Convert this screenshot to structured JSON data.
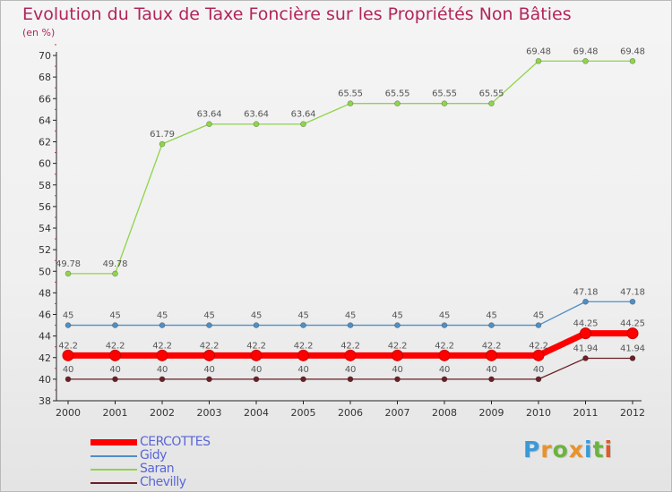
{
  "title": "Evolution du Taux de Taxe Foncière sur les Propriétés Non Bâties",
  "unit": "(en %)",
  "logo": {
    "text": "Proxiti",
    "letter_colors": [
      "#3a9ad9",
      "#e8922a",
      "#6cb33f",
      "#e8922a",
      "#3a9ad9",
      "#6cb33f",
      "#e05a2b"
    ]
  },
  "chart_data": {
    "type": "line",
    "title": "Evolution du Taux de Taxe Foncière sur les Propriétés Non Bâties",
    "ylabel": "(en %)",
    "xlabel": "",
    "x": [
      "2000",
      "2001",
      "2002",
      "2003",
      "2004",
      "2005",
      "2006",
      "2007",
      "2008",
      "2009",
      "2010",
      "2011",
      "2012"
    ],
    "ylim": [
      38,
      70
    ],
    "yticks": [
      "38",
      "40",
      "42",
      "44",
      "46",
      "48",
      "50",
      "52",
      "54",
      "56",
      "58",
      "60",
      "62",
      "64",
      "66",
      "68",
      "70"
    ],
    "grid": false,
    "legend_position": "bottom-left",
    "series": [
      {
        "name": "CERCOTTES",
        "color": "#ff0000",
        "values": [
          42.2,
          42.2,
          42.2,
          42.2,
          42.2,
          42.2,
          42.2,
          42.2,
          42.2,
          42.2,
          42.2,
          44.25,
          44.25
        ],
        "labels": [
          "42.2",
          "42.2",
          "42.2",
          "42.2",
          "42.2",
          "42.2",
          "42.2",
          "42.2",
          "42.2",
          "42.2",
          "42.2",
          "44.25",
          "44.25"
        ]
      },
      {
        "name": "Gidy",
        "color": "#4e8fc6",
        "values": [
          45,
          45,
          45,
          45,
          45,
          45,
          45,
          45,
          45,
          45,
          45,
          47.18,
          47.18
        ],
        "labels": [
          "45",
          "45",
          "45",
          "45",
          "45",
          "45",
          "45",
          "45",
          "45",
          "45",
          "45",
          "47.18",
          "47.18"
        ]
      },
      {
        "name": "Saran",
        "color": "#8fd44a",
        "values": [
          49.78,
          49.78,
          61.79,
          63.64,
          63.64,
          63.64,
          65.55,
          65.55,
          65.55,
          65.55,
          69.48,
          69.48,
          69.48
        ],
        "labels": [
          "49.78",
          "49.78",
          "61.79",
          "63.64",
          "63.64",
          "63.64",
          "65.55",
          "65.55",
          "65.55",
          "65.55",
          "69.48",
          "69.48",
          "69.48"
        ]
      },
      {
        "name": "Chevilly",
        "color": "#6b1f27",
        "values": [
          40,
          40,
          40,
          40,
          40,
          40,
          40,
          40,
          40,
          40,
          40,
          41.94,
          41.94
        ],
        "labels": [
          "40",
          "40",
          "40",
          "40",
          "40",
          "40",
          "40",
          "40",
          "40",
          "40",
          "40",
          "41.94",
          "41.94"
        ]
      }
    ]
  }
}
